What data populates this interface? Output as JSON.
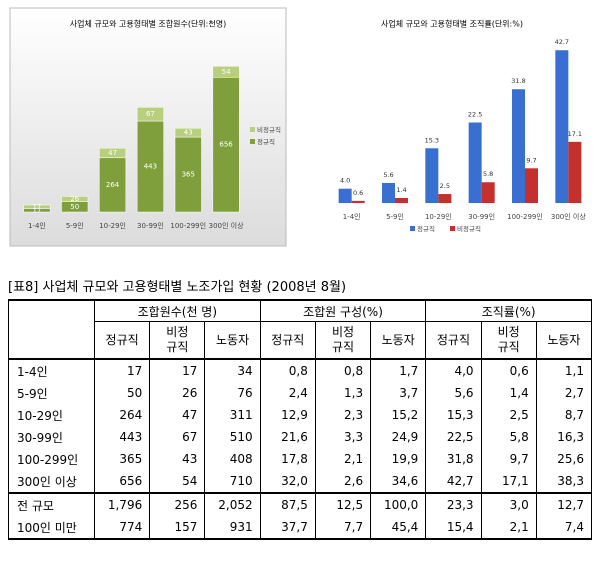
{
  "chart_data": [
    {
      "type": "bar",
      "stacked": true,
      "title": "사업체 규모와 고용형태별 조합원수(단위:천명)",
      "categories": [
        "1-4인",
        "5-9인",
        "10-29인",
        "30-99인",
        "100-299인",
        "300인 이상"
      ],
      "series": [
        {
          "name": "정규직",
          "color": "#7f9f3c",
          "values": [
            17,
            50,
            264,
            443,
            365,
            656
          ]
        },
        {
          "name": "비정규직",
          "color": "#b8cf7d",
          "values": [
            17,
            26,
            47,
            67,
            43,
            54
          ]
        }
      ],
      "ylim": [
        0,
        750
      ],
      "legend": "right"
    },
    {
      "type": "bar",
      "stacked": false,
      "title": "사업체 규모와 고용형태별 조직률(단위:%)",
      "categories": [
        "1-4인",
        "5-9인",
        "10-29인",
        "30-99인",
        "100-299인",
        "300인 이상"
      ],
      "series": [
        {
          "name": "정규직",
          "color": "#3a6fd2",
          "values": [
            4.0,
            5.6,
            15.3,
            22.5,
            31.8,
            42.7
          ],
          "value_labels": [
            "4.0",
            "5.6",
            "15.3",
            "22.5",
            "31.8",
            "42.7"
          ]
        },
        {
          "name": "비정규직",
          "color": "#c4302b",
          "values": [
            0.6,
            1.4,
            2.5,
            5.8,
            9.7,
            17.1
          ]
        }
      ],
      "ylim": [
        0,
        45
      ],
      "legend": "bottom"
    }
  ],
  "table": {
    "title": "[표8] 사업체 규모와 고용형태별 노조가입 현황 (2008년 8월)",
    "groups": [
      "조합원수(천 명)",
      "조합원 구성(%)",
      "조직률(%)"
    ],
    "subheaders": [
      "정규직",
      "비정규직",
      "노동자",
      "정규직",
      "비정규직",
      "노동자",
      "정규직",
      "비정규직",
      "노동자"
    ],
    "rows": [
      [
        "1-4인",
        "17",
        "17",
        "34",
        "0,8",
        "0,8",
        "1,7",
        "4,0",
        "0,6",
        "1,1"
      ],
      [
        "5-9인",
        "50",
        "26",
        "76",
        "2,4",
        "1,3",
        "3,7",
        "5,6",
        "1,4",
        "2,7"
      ],
      [
        "10-29인",
        "264",
        "47",
        "311",
        "12,9",
        "2,3",
        "15,2",
        "15,3",
        "2,5",
        "8,7"
      ],
      [
        "30-99인",
        "443",
        "67",
        "510",
        "21,6",
        "3,3",
        "24,9",
        "22,5",
        "5,8",
        "16,3"
      ],
      [
        "100-299인",
        "365",
        "43",
        "408",
        "17,8",
        "2,1",
        "19,9",
        "31,8",
        "9,7",
        "25,6"
      ],
      [
        "300인 이상",
        "656",
        "54",
        "710",
        "32,0",
        "2,6",
        "34,6",
        "42,7",
        "17,1",
        "38,3"
      ],
      [
        "전 규모",
        "1,796",
        "256",
        "2,052",
        "87,5",
        "12,5",
        "100,0",
        "23,3",
        "3,0",
        "12,7"
      ],
      [
        "100인 미만",
        "774",
        "157",
        "931",
        "37,7",
        "7,7",
        "45,4",
        "15,4",
        "2,1",
        "7,4"
      ]
    ]
  }
}
